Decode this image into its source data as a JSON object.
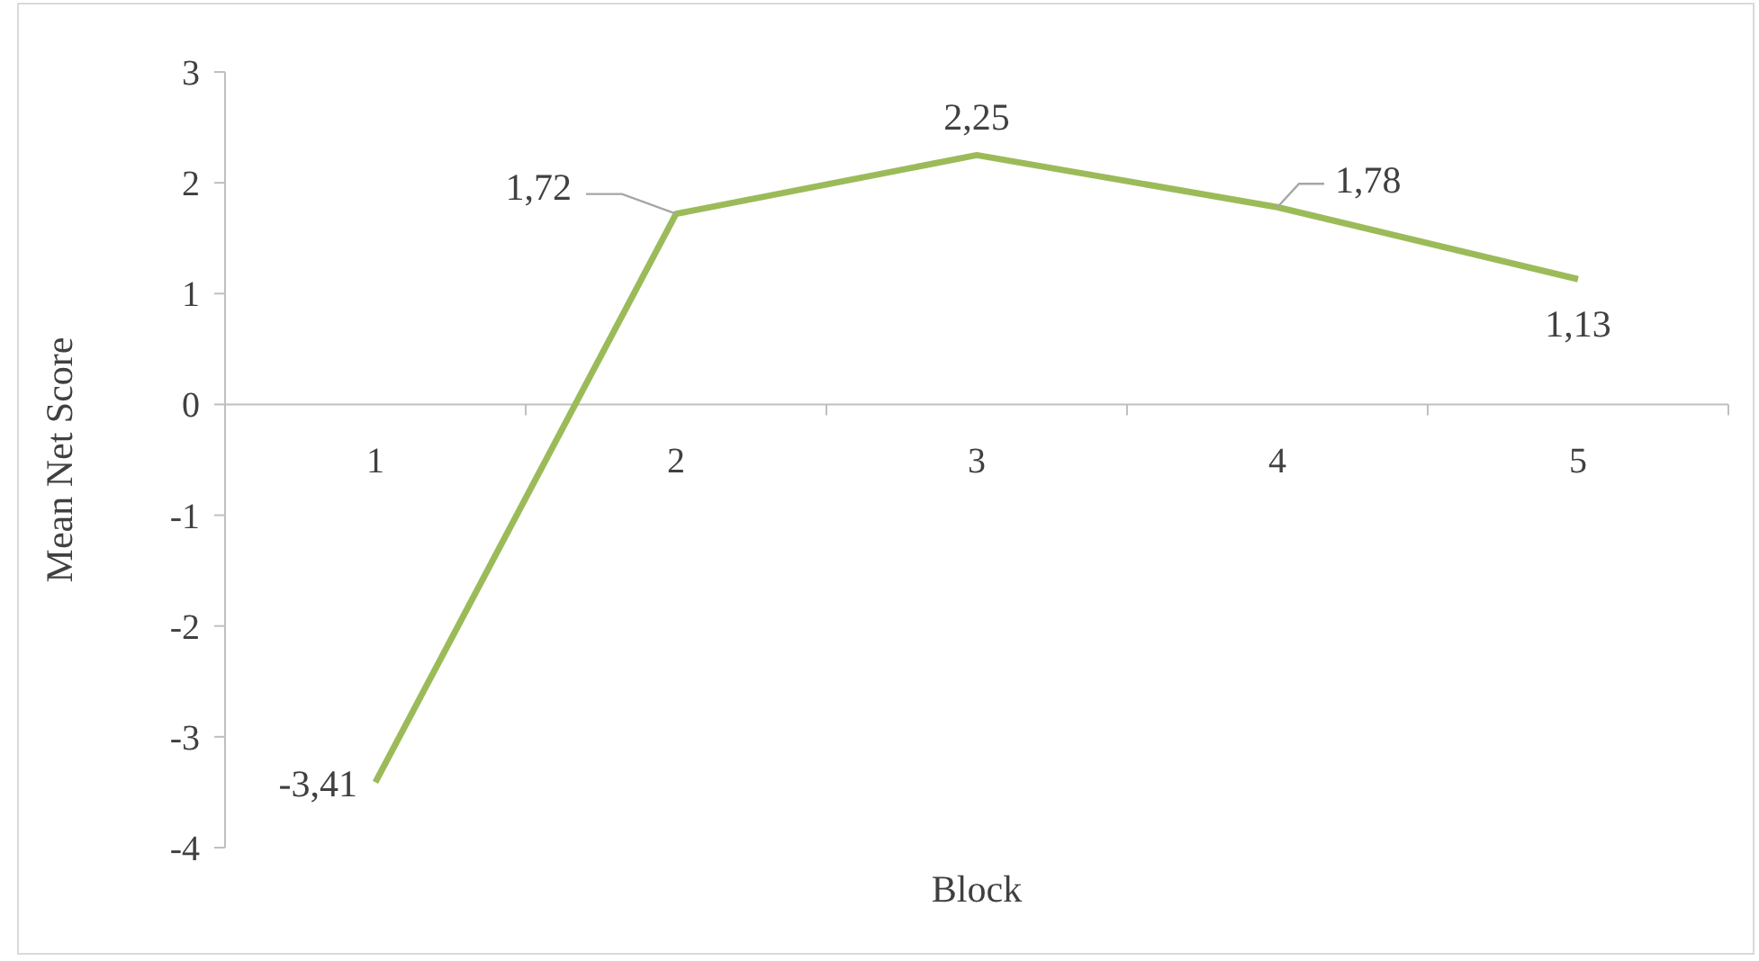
{
  "chart_data": {
    "type": "line",
    "xlabel": "Block",
    "ylabel": "Mean Net Score",
    "categories": [
      "1",
      "2",
      "3",
      "4",
      "5"
    ],
    "series": [
      {
        "color": "#9bbb59",
        "values": [
          -3.41,
          1.72,
          2.25,
          1.78,
          1.13
        ],
        "value_labels": [
          "-3,41",
          "1,72",
          "2,25",
          "1,78",
          "1,13"
        ]
      }
    ],
    "ylim": [
      -4,
      3
    ],
    "yticks": [
      -4,
      -3,
      -2,
      -1,
      0,
      1,
      2,
      3
    ],
    "grid": false,
    "marker": "none",
    "line_style": "solid"
  }
}
